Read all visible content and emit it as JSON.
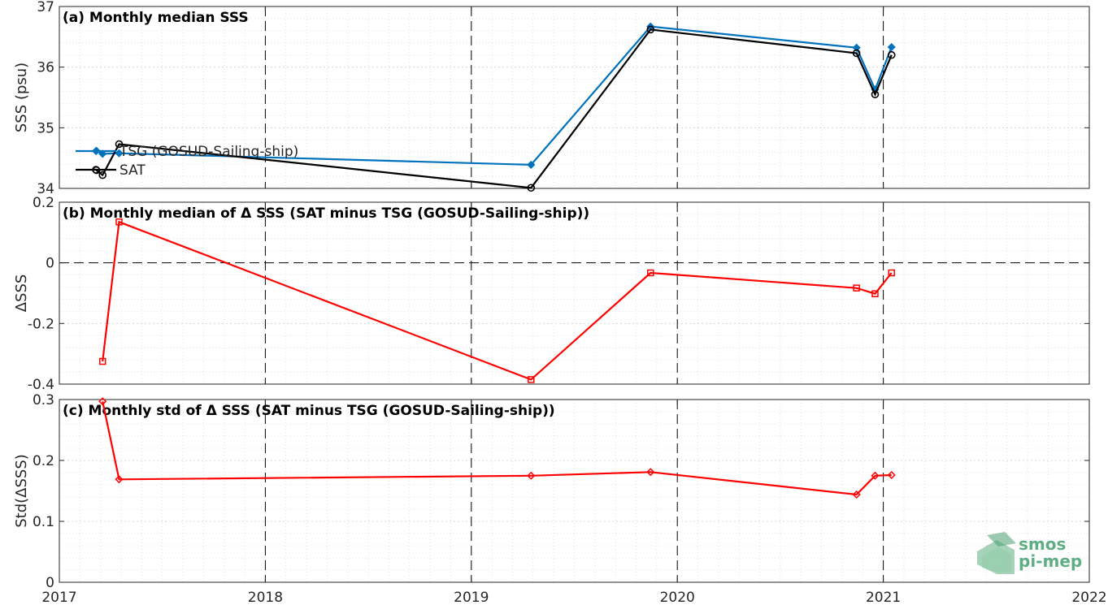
{
  "chart_data": [
    {
      "type": "line",
      "title": "(a) Monthly median SSS",
      "ylabel": "SSS (psu)",
      "ylim": [
        34,
        37
      ],
      "yticks": [
        34,
        35,
        36,
        37
      ],
      "xlim": [
        2017,
        2022
      ],
      "grid": true,
      "legend_position": "middle-left",
      "series": [
        {
          "name": "TSG (GOSUD-Sailing-ship)",
          "color": "#0072BD",
          "marker": "diamond",
          "points": [
            [
              2017.18,
              34.62
            ],
            [
              2017.21,
              34.57
            ],
            [
              2017.29,
              34.58
            ],
            [
              2019.29,
              34.39
            ],
            [
              2019.87,
              36.67
            ],
            [
              2020.87,
              36.32
            ],
            [
              2020.96,
              35.63
            ],
            [
              2021.04,
              36.33
            ]
          ]
        },
        {
          "name": "SAT",
          "color": "#000000",
          "marker": "circle",
          "points": [
            [
              2017.18,
              34.3
            ],
            [
              2017.21,
              34.22
            ],
            [
              2017.29,
              34.73
            ],
            [
              2019.29,
              34.01
            ],
            [
              2019.87,
              36.62
            ],
            [
              2020.87,
              36.23
            ],
            [
              2020.96,
              35.55
            ],
            [
              2021.04,
              36.2
            ]
          ]
        }
      ]
    },
    {
      "type": "line",
      "title": "(b) Monthly median of Δ SSS (SAT minus TSG (GOSUD-Sailing-ship))",
      "ylabel": "ΔSSS",
      "ylim": [
        -0.4,
        0.2
      ],
      "yticks": [
        -0.4,
        -0.2,
        0,
        0.2
      ],
      "xlim": [
        2017,
        2022
      ],
      "grid": true,
      "series": [
        {
          "color": "#FF0000",
          "marker": "square",
          "points": [
            [
              2017.21,
              -0.325
            ],
            [
              2017.29,
              0.135
            ],
            [
              2019.29,
              -0.385
            ],
            [
              2019.87,
              -0.033
            ],
            [
              2020.87,
              -0.083
            ],
            [
              2020.96,
              -0.102
            ],
            [
              2021.04,
              -0.033
            ]
          ]
        }
      ]
    },
    {
      "type": "line",
      "title": "(c) Monthly std of Δ SSS (SAT minus TSG (GOSUD-Sailing-ship))",
      "ylabel": "Std(ΔSSS)",
      "ylim": [
        0,
        0.3
      ],
      "yticks": [
        0,
        0.1,
        0.2,
        0.3
      ],
      "xlim": [
        2017,
        2022
      ],
      "xticks": [
        2017,
        2018,
        2019,
        2020,
        2021,
        2022
      ],
      "grid": true,
      "series": [
        {
          "color": "#FF0000",
          "marker": "diamond",
          "points": [
            [
              2017.21,
              0.297
            ],
            [
              2017.29,
              0.169
            ],
            [
              2019.29,
              0.175
            ],
            [
              2019.87,
              0.181
            ],
            [
              2020.87,
              0.144
            ],
            [
              2020.96,
              0.175
            ],
            [
              2021.04,
              0.176
            ]
          ]
        }
      ]
    }
  ],
  "logo": {
    "line1": "smos",
    "line2": "pi-mep",
    "color": "#5fae83"
  }
}
